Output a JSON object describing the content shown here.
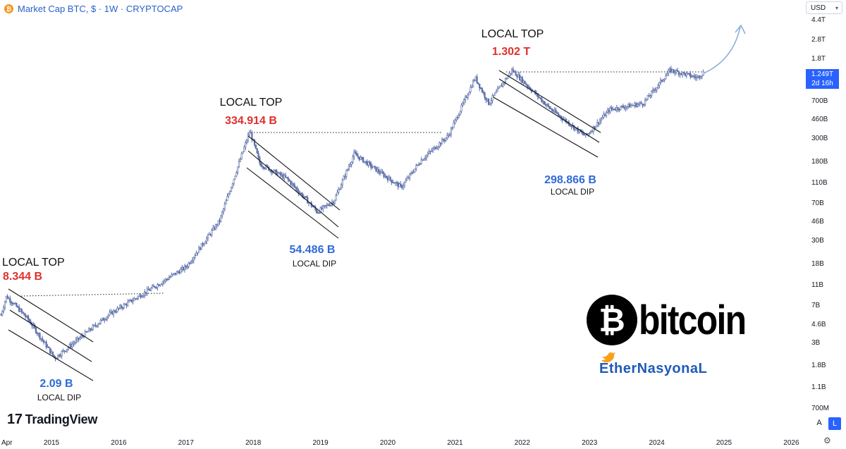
{
  "header": {
    "title": "Market Cap BTC, $ · 1W · CRYPTOCAP",
    "badge": "₿"
  },
  "currency": {
    "label": "USD"
  },
  "last_price": {
    "value": "1.249T",
    "countdown": "2d 16h"
  },
  "colors": {
    "candle": "#5b6ea8",
    "top_label": "#e0302d",
    "dip_label": "#2f6bd6",
    "accent": "#2962ff",
    "arrow": "#8aaed8"
  },
  "chart_data": {
    "type": "candlestick",
    "y_scale": "log",
    "y_ticks": [
      "4.4T",
      "2.8T",
      "1.8T",
      "1.249T",
      "700B",
      "460B",
      "300B",
      "180B",
      "110B",
      "70B",
      "46B",
      "30B",
      "18B",
      "11B",
      "7B",
      "4.6B",
      "3B",
      "1.8B",
      "1.1B",
      "700M"
    ],
    "x_ticks": [
      "Apr",
      "2015",
      "2016",
      "2017",
      "2018",
      "2019",
      "2020",
      "2021",
      "2022",
      "2023",
      "2024",
      "2025",
      "2026"
    ],
    "approx_path": [
      {
        "t": 2014.25,
        "v": 5.5
      },
      {
        "t": 2014.33,
        "v": 8.344
      },
      {
        "t": 2014.65,
        "v": 5
      },
      {
        "t": 2015.05,
        "v": 2.09
      },
      {
        "t": 2015.5,
        "v": 3.6
      },
      {
        "t": 2015.85,
        "v": 5.5
      },
      {
        "t": 2016.5,
        "v": 10
      },
      {
        "t": 2017.0,
        "v": 16
      },
      {
        "t": 2017.5,
        "v": 45
      },
      {
        "t": 2017.95,
        "v": 334.914
      },
      {
        "t": 2018.1,
        "v": 160
      },
      {
        "t": 2018.5,
        "v": 115
      },
      {
        "t": 2018.9,
        "v": 60
      },
      {
        "t": 2018.95,
        "v": 54.486
      },
      {
        "t": 2019.2,
        "v": 70
      },
      {
        "t": 2019.5,
        "v": 200
      },
      {
        "t": 2019.9,
        "v": 130
      },
      {
        "t": 2020.2,
        "v": 95
      },
      {
        "t": 2020.5,
        "v": 175
      },
      {
        "t": 2020.9,
        "v": 300
      },
      {
        "t": 2021.3,
        "v": 1100
      },
      {
        "t": 2021.5,
        "v": 620
      },
      {
        "t": 2021.85,
        "v": 1302
      },
      {
        "t": 2022.4,
        "v": 560
      },
      {
        "t": 2022.9,
        "v": 310
      },
      {
        "t": 2022.95,
        "v": 298.866
      },
      {
        "t": 2023.3,
        "v": 540
      },
      {
        "t": 2023.8,
        "v": 620
      },
      {
        "t": 2024.2,
        "v": 1302
      },
      {
        "t": 2024.6,
        "v": 1100
      },
      {
        "t": 2024.7,
        "v": 1249
      }
    ]
  },
  "annotations": [
    {
      "key": "top1",
      "heading": "LOCAL TOP",
      "value": "8.344 B"
    },
    {
      "key": "dip1",
      "heading": "LOCAL DIP",
      "value": "2.09 B"
    },
    {
      "key": "top2",
      "heading": "LOCAL TOP",
      "value": "334.914 B"
    },
    {
      "key": "dip2",
      "heading": "LOCAL DIP",
      "value": "54.486 B"
    },
    {
      "key": "top3",
      "heading": "LOCAL TOP",
      "value": "1.302 T"
    },
    {
      "key": "dip3",
      "heading": "LOCAL DIP",
      "value": "298.866 B"
    }
  ],
  "branding": {
    "tradingview": "TradingView",
    "logo_symbol": "₿",
    "logo_word": "bitcoin",
    "watermark": "EtherNasyonaL"
  },
  "controls": {
    "auto": "A",
    "log": "L"
  }
}
